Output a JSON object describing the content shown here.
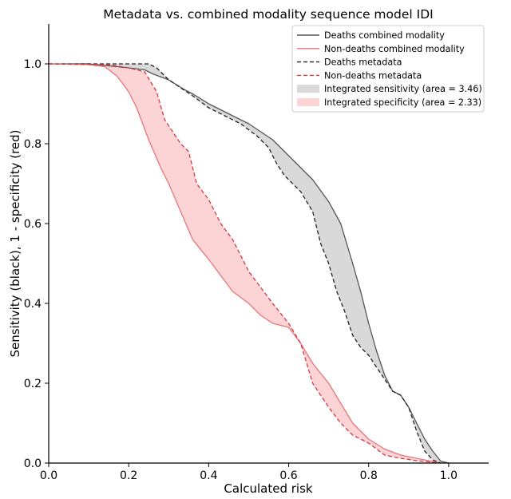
{
  "chart_data": {
    "type": "line",
    "title": "Metadata vs. combined modality sequence model IDI",
    "xlabel": "Calculated risk",
    "ylabel": "Sensitivity (black), 1 - specificity (red)",
    "xlim": [
      0.0,
      1.1
    ],
    "ylim": [
      0.0,
      1.1
    ],
    "xticks": [
      0.0,
      0.2,
      0.4,
      0.6,
      0.8,
      1.0
    ],
    "xtick_labels": [
      "0.0",
      "0.2",
      "0.4",
      "0.6",
      "0.8",
      "1.0"
    ],
    "yticks": [
      0.0,
      0.2,
      0.4,
      0.6,
      0.8,
      1.0
    ],
    "ytick_labels": [
      "0.0",
      "0.2",
      "0.4",
      "0.6",
      "0.8",
      "1.0"
    ],
    "legend_position": "top-right",
    "series": [
      {
        "name": "Deaths combined modality",
        "color": "#555555",
        "style": "solid",
        "x": [
          0.0,
          0.1,
          0.15,
          0.2,
          0.24,
          0.26,
          0.3,
          0.34,
          0.36,
          0.4,
          0.44,
          0.46,
          0.5,
          0.53,
          0.56,
          0.6,
          0.63,
          0.66,
          0.7,
          0.73,
          0.76,
          0.78,
          0.8,
          0.82,
          0.84,
          0.86,
          0.88,
          0.9,
          0.92,
          0.94,
          0.96,
          0.98,
          1.0
        ],
        "y": [
          1.0,
          1.0,
          0.995,
          0.99,
          0.985,
          0.975,
          0.96,
          0.935,
          0.925,
          0.9,
          0.88,
          0.87,
          0.85,
          0.83,
          0.81,
          0.77,
          0.74,
          0.71,
          0.655,
          0.6,
          0.5,
          0.43,
          0.35,
          0.28,
          0.22,
          0.18,
          0.17,
          0.14,
          0.1,
          0.06,
          0.03,
          0.005,
          0.0
        ]
      },
      {
        "name": "Non-deaths combined modality",
        "color": "#e8757a",
        "style": "solid",
        "x": [
          0.0,
          0.1,
          0.14,
          0.17,
          0.2,
          0.22,
          0.25,
          0.28,
          0.3,
          0.33,
          0.36,
          0.4,
          0.43,
          0.46,
          0.5,
          0.53,
          0.56,
          0.6,
          0.63,
          0.66,
          0.7,
          0.73,
          0.76,
          0.8,
          0.84,
          0.88,
          0.92,
          0.96,
          0.98
        ],
        "y": [
          1.0,
          0.998,
          0.993,
          0.97,
          0.93,
          0.89,
          0.81,
          0.74,
          0.7,
          0.63,
          0.56,
          0.51,
          0.47,
          0.43,
          0.4,
          0.37,
          0.35,
          0.34,
          0.3,
          0.25,
          0.2,
          0.15,
          0.1,
          0.06,
          0.035,
          0.02,
          0.012,
          0.004,
          0.0
        ]
      },
      {
        "name": "Deaths metadata",
        "color": "#222222",
        "style": "dashed",
        "x": [
          0.0,
          0.1,
          0.2,
          0.25,
          0.27,
          0.3,
          0.33,
          0.36,
          0.4,
          0.44,
          0.48,
          0.52,
          0.55,
          0.57,
          0.59,
          0.6,
          0.63,
          0.66,
          0.68,
          0.7,
          0.72,
          0.74,
          0.76,
          0.78,
          0.8,
          0.82,
          0.84,
          0.86,
          0.88,
          0.9,
          0.92,
          0.94,
          0.96,
          0.98
        ],
        "y": [
          1.0,
          1.0,
          1.0,
          1.0,
          0.99,
          0.96,
          0.94,
          0.92,
          0.89,
          0.87,
          0.85,
          0.82,
          0.79,
          0.75,
          0.72,
          0.71,
          0.68,
          0.63,
          0.55,
          0.5,
          0.43,
          0.38,
          0.32,
          0.29,
          0.27,
          0.24,
          0.21,
          0.18,
          0.17,
          0.14,
          0.08,
          0.03,
          0.008,
          0.0
        ]
      },
      {
        "name": "Non-deaths metadata",
        "color": "#d9373d",
        "style": "dashed",
        "x": [
          0.0,
          0.15,
          0.2,
          0.24,
          0.27,
          0.29,
          0.31,
          0.33,
          0.35,
          0.37,
          0.4,
          0.43,
          0.46,
          0.5,
          0.53,
          0.56,
          0.6,
          0.63,
          0.66,
          0.7,
          0.73,
          0.76,
          0.8,
          0.84,
          0.88,
          0.92,
          0.96,
          0.98
        ],
        "y": [
          1.0,
          0.998,
          0.99,
          0.98,
          0.93,
          0.86,
          0.83,
          0.8,
          0.78,
          0.7,
          0.66,
          0.6,
          0.56,
          0.48,
          0.44,
          0.4,
          0.35,
          0.3,
          0.2,
          0.14,
          0.1,
          0.07,
          0.05,
          0.02,
          0.012,
          0.006,
          0.002,
          0.0
        ]
      }
    ],
    "fills": [
      {
        "name": "Integrated sensitivity (area = 3.46)",
        "between": [
          "Deaths combined modality",
          "Deaths metadata"
        ],
        "color": "#d9d9d9"
      },
      {
        "name": "Integrated specificity (area = 2.33)",
        "between": [
          "Non-deaths combined modality",
          "Non-deaths metadata"
        ],
        "color": "#fcd4d6"
      }
    ],
    "legend": [
      {
        "label": "Deaths combined modality",
        "kind": "line",
        "color": "#555555",
        "style": "solid"
      },
      {
        "label": "Non-deaths combined modality",
        "kind": "line",
        "color": "#e8757a",
        "style": "solid"
      },
      {
        "label": "Deaths metadata",
        "kind": "line",
        "color": "#222222",
        "style": "dashed"
      },
      {
        "label": "Non-deaths metadata",
        "kind": "line",
        "color": "#d9373d",
        "style": "dashed"
      },
      {
        "label": "Integrated sensitivity (area = 3.46)",
        "kind": "patch",
        "color": "#d9d9d9"
      },
      {
        "label": "Integrated specificity (area = 2.33)",
        "kind": "patch",
        "color": "#fcd4d6"
      }
    ]
  }
}
